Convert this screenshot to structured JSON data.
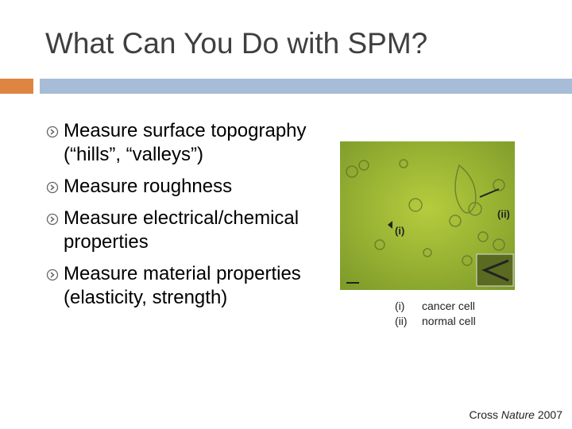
{
  "title": "What Can You Do with SPM?",
  "bullets": [
    "Measure surface topography (“hills”, “valleys”)",
    "Measure roughness",
    "Measure electrical/chemical properties",
    "Measure material properties (elasticity, strength)"
  ],
  "image_labels": [
    "(i)",
    "(ii)"
  ],
  "caption": [
    {
      "marker": "(i)",
      "text": "cancer cell"
    },
    {
      "marker": "(ii)",
      "text": "normal cell"
    }
  ],
  "citation": {
    "author": "Cross",
    "journal": "Nature",
    "year": "2007"
  }
}
